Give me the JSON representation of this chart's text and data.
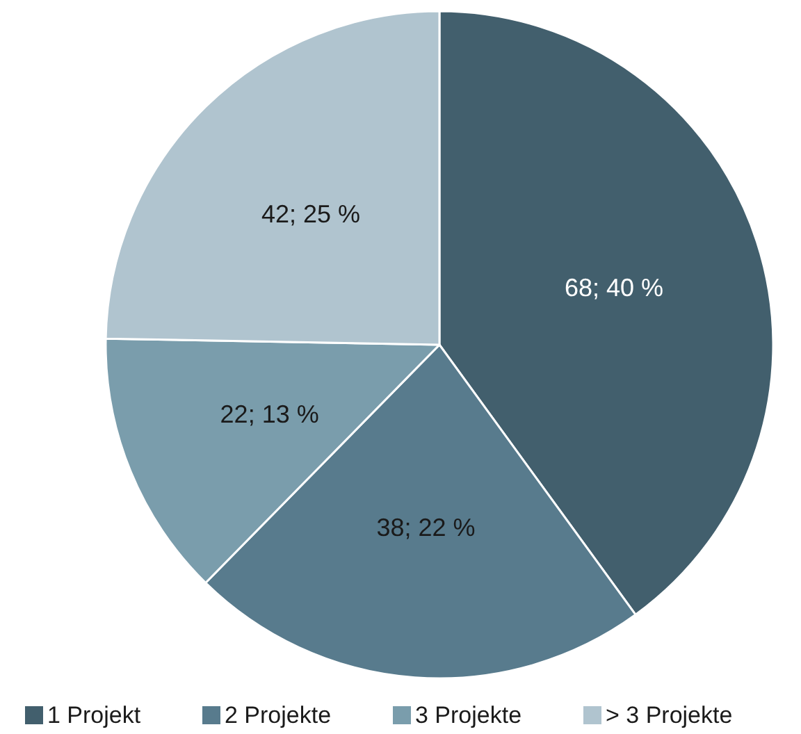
{
  "chart_data": {
    "type": "pie",
    "categories": [
      "1 Projekt",
      "2 Projekte",
      "3 Projekte",
      "> 3 Projekte"
    ],
    "values": [
      68,
      38,
      22,
      42
    ],
    "colors": [
      "#425f6d",
      "#587b8d",
      "#7a9dac",
      "#b0c4cf"
    ],
    "value_labels": [
      "68; 40 %",
      "38; 22 %",
      "22; 13 %",
      "42; 25 %"
    ],
    "legend": "bottom"
  }
}
